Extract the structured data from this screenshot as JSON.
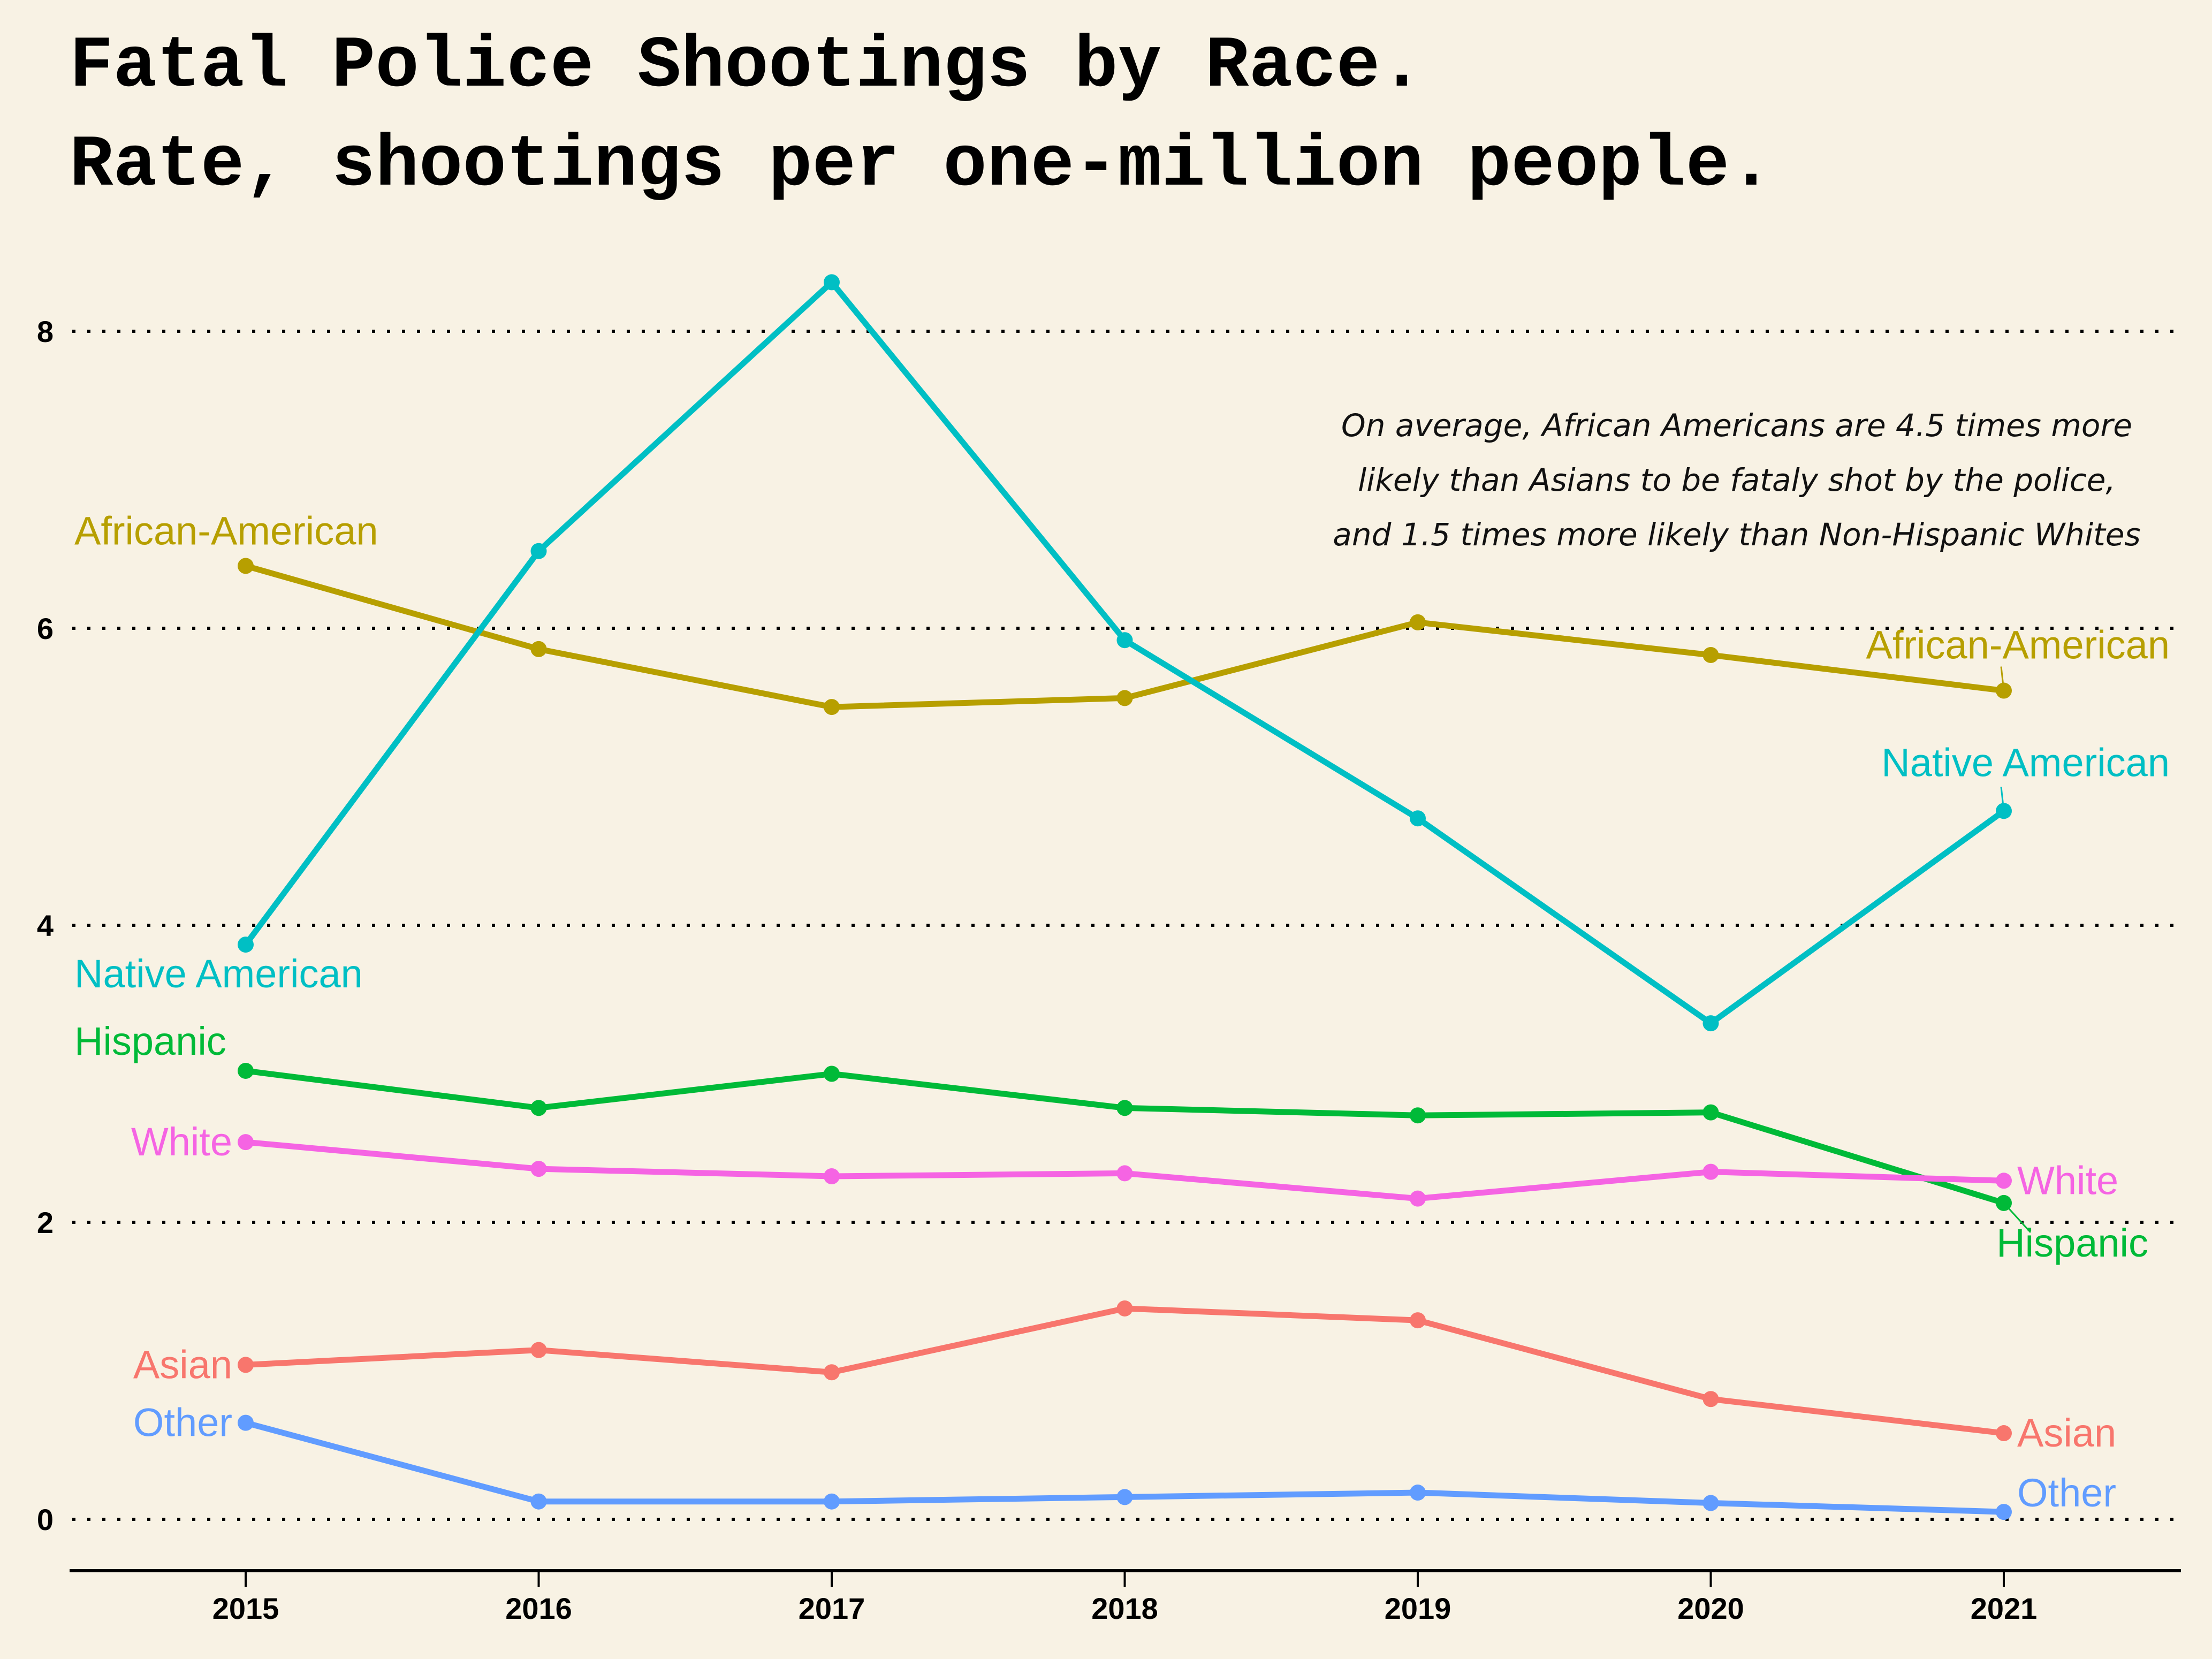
{
  "chart_data": {
    "type": "line",
    "title": [
      "Fatal Police Shootings by Race.",
      "Rate, shootings per one-million people."
    ],
    "xlabel": "",
    "ylabel": "",
    "categories": [
      "2015",
      "2016",
      "2017",
      "2018",
      "2019",
      "2020",
      "2021"
    ],
    "y_ticks": [
      "0",
      "2",
      "4",
      "6",
      "8"
    ],
    "ylim": [
      -0.35,
      8.55
    ],
    "grid": "horizontal dotted",
    "legend": "none (direct labels at both ends)",
    "annotation": [
      "On average, African Americans are 4.5 times more",
      "likely than Asians to be fataly shot by the police,",
      "and 1.5 times more likely than Non-Hispanic Whites"
    ],
    "series": [
      {
        "name": "African-American",
        "color": "#b79f00",
        "values": [
          6.42,
          5.86,
          5.47,
          5.53,
          6.04,
          5.82,
          5.58
        ]
      },
      {
        "name": "Native American",
        "color": "#00bfc4",
        "values": [
          3.87,
          6.52,
          8.33,
          5.92,
          4.72,
          3.34,
          4.77
        ]
      },
      {
        "name": "Hispanic",
        "color": "#00ba38",
        "values": [
          3.02,
          2.77,
          3.0,
          2.77,
          2.72,
          2.74,
          2.13
        ]
      },
      {
        "name": "White",
        "color": "#f564e3",
        "values": [
          2.54,
          2.36,
          2.31,
          2.33,
          2.16,
          2.34,
          2.28
        ]
      },
      {
        "name": "Asian",
        "color": "#f8766d",
        "values": [
          1.04,
          1.14,
          0.99,
          1.42,
          1.34,
          0.81,
          0.58
        ]
      },
      {
        "name": "Other",
        "color": "#619cff",
        "values": [
          0.65,
          0.12,
          0.12,
          0.15,
          0.18,
          0.11,
          0.05
        ]
      }
    ]
  }
}
